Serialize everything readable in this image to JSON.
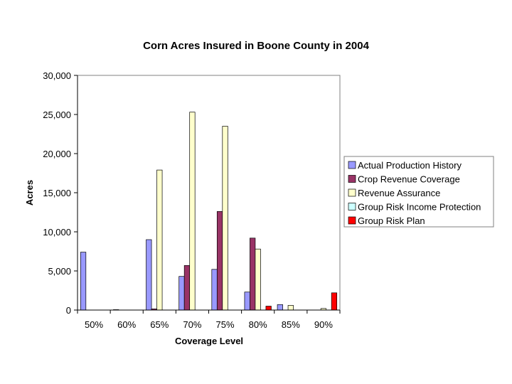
{
  "chart_data": {
    "type": "bar",
    "title": "Corn Acres Insured in Boone County in 2004",
    "xlabel": "Coverage Level",
    "ylabel": "Acres",
    "ylim": [
      0,
      30000
    ],
    "yticks": [
      0,
      5000,
      10000,
      15000,
      20000,
      25000,
      30000
    ],
    "ytick_labels": [
      "0",
      "5,000",
      "10,000",
      "15,000",
      "20,000",
      "25,000",
      "30,000"
    ],
    "categories": [
      "50%",
      "60%",
      "65%",
      "70%",
      "75%",
      "80%",
      "85%",
      "90%"
    ],
    "grid": false,
    "legend_position": "right",
    "series": [
      {
        "name": "Actual Production History",
        "color": "#9999ff",
        "values": [
          7400,
          50,
          9000,
          4300,
          5200,
          2300,
          700,
          0
        ]
      },
      {
        "name": "Crop Revenue Coverage",
        "color": "#993366",
        "values": [
          0,
          0,
          150,
          5700,
          12600,
          9200,
          0,
          0
        ]
      },
      {
        "name": "Revenue Assurance",
        "color": "#ffffcc",
        "values": [
          0,
          0,
          17900,
          25300,
          23500,
          7800,
          600,
          200
        ]
      },
      {
        "name": "Group Risk Income Protection",
        "color": "#ccffff",
        "values": [
          0,
          0,
          0,
          0,
          0,
          0,
          0,
          0
        ]
      },
      {
        "name": "Group Risk Plan",
        "color": "#ff0000",
        "values": [
          0,
          0,
          0,
          0,
          0,
          500,
          0,
          2200
        ]
      }
    ]
  }
}
